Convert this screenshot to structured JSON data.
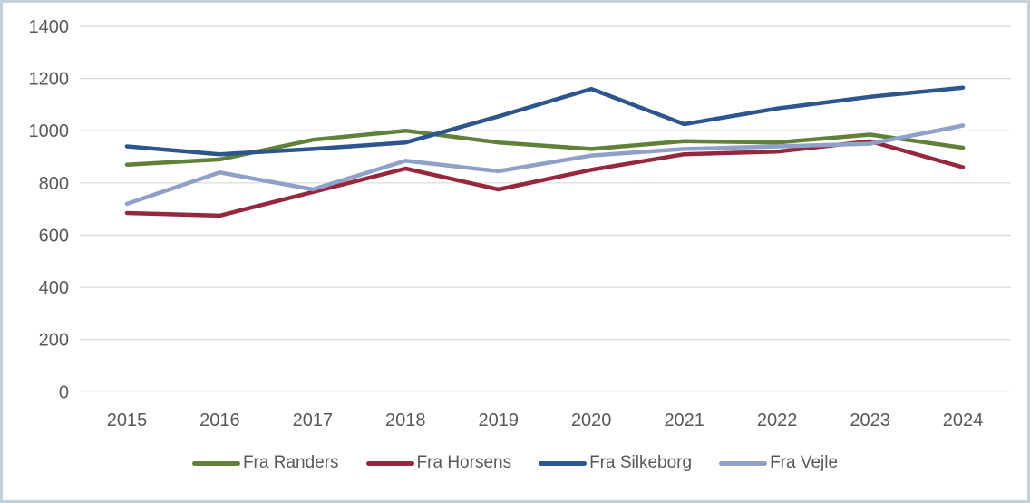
{
  "chart_data": {
    "type": "line",
    "title": "",
    "categories": [
      "2015",
      "2016",
      "2017",
      "2018",
      "2019",
      "2020",
      "2021",
      "2022",
      "2023",
      "2024"
    ],
    "series": [
      {
        "name": "Fra Randers",
        "color": "#61803A",
        "values": [
          870,
          890,
          965,
          1000,
          955,
          930,
          960,
          955,
          985,
          935
        ]
      },
      {
        "name": "Fra Horsens",
        "color": "#96273C",
        "values": [
          685,
          675,
          765,
          855,
          775,
          850,
          910,
          920,
          960,
          860
        ]
      },
      {
        "name": "Fra Silkeborg",
        "color": "#2C568D",
        "values": [
          940,
          910,
          930,
          955,
          1055,
          1160,
          1025,
          1085,
          1130,
          1165
        ]
      },
      {
        "name": "Fra Vejle",
        "color": "#8FA1C9",
        "values": [
          720,
          840,
          775,
          885,
          845,
          905,
          930,
          940,
          950,
          1020
        ]
      }
    ],
    "y_axis": {
      "min": 0,
      "max": 1400,
      "step": 200,
      "ticks": [
        "0",
        "200",
        "400",
        "600",
        "800",
        "1000",
        "1200",
        "1400"
      ]
    },
    "x_axis": {
      "label": ""
    },
    "grid": true,
    "legend_position": "bottom"
  },
  "colors": {
    "text": "#595959",
    "gridline": "#D8D8D8",
    "border": "#C2D1DC",
    "background": "#FFFFFF"
  }
}
